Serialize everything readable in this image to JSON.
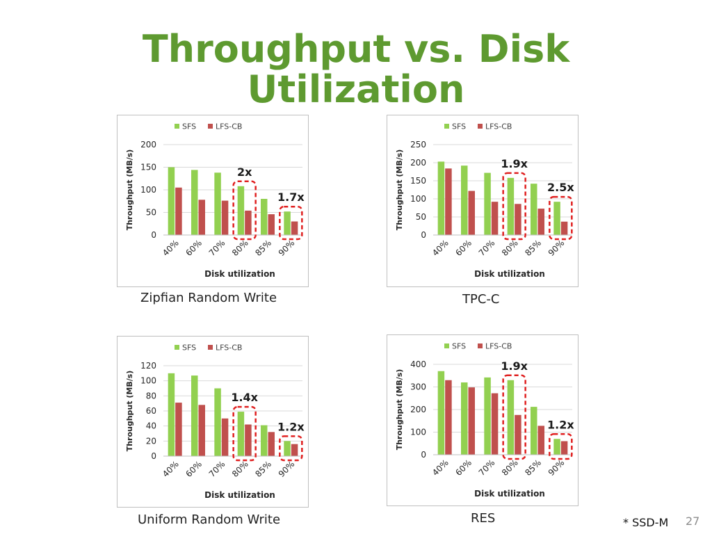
{
  "slide": {
    "title_line1": "Throughput vs. Disk",
    "title_line2": "Utilization",
    "footnote": "* SSD-M",
    "page_number": "27"
  },
  "colors": {
    "sfs": "#92d050",
    "lfs": "#c0504d",
    "callout": "#e02020",
    "title": "#5e9a30"
  },
  "chart_data": [
    {
      "type": "bar",
      "caption": "Zipfian Random Write",
      "categories": [
        "40%",
        "60%",
        "70%",
        "80%",
        "85%",
        "90%"
      ],
      "series": [
        {
          "name": "SFS",
          "values": [
            150,
            144,
            138,
            108,
            80,
            52
          ]
        },
        {
          "name": "LFS-CB",
          "values": [
            105,
            78,
            76,
            54,
            46,
            30
          ]
        }
      ],
      "xlabel": "Disk utilization",
      "ylabel": "Throughput (MB/s)",
      "ylim": [
        0,
        200
      ],
      "yticks": [
        "0",
        "50",
        "100",
        "150",
        "200"
      ],
      "legend": "top",
      "grid": true,
      "annotations": [
        {
          "text": "2x",
          "category": "80%"
        },
        {
          "text": "1.7x",
          "category": "90%"
        }
      ]
    },
    {
      "type": "bar",
      "caption": "TPC-C",
      "categories": [
        "40%",
        "60%",
        "70%",
        "80%",
        "85%",
        "90%"
      ],
      "series": [
        {
          "name": "SFS",
          "values": [
            203,
            192,
            172,
            158,
            142,
            92
          ]
        },
        {
          "name": "LFS-CB",
          "values": [
            184,
            122,
            92,
            86,
            73,
            37
          ]
        }
      ],
      "xlabel": "Disk utilization",
      "ylabel": "Throughput (MB/s)",
      "ylim": [
        0,
        250
      ],
      "yticks": [
        "0",
        "50",
        "100",
        "150",
        "200",
        "250"
      ],
      "legend": "top",
      "grid": true,
      "annotations": [
        {
          "text": "1.9x",
          "category": "80%"
        },
        {
          "text": "2.5x",
          "category": "90%"
        }
      ]
    },
    {
      "type": "bar",
      "caption": "Uniform Random Write",
      "categories": [
        "40%",
        "60%",
        "70%",
        "80%",
        "85%",
        "90%"
      ],
      "series": [
        {
          "name": "SFS",
          "values": [
            110,
            107,
            90,
            59,
            41,
            20
          ]
        },
        {
          "name": "LFS-CB",
          "values": [
            71,
            68,
            50,
            42,
            32,
            16
          ]
        }
      ],
      "xlabel": "Disk utilization",
      "ylabel": "Throughput (MB/s)",
      "ylim": [
        0,
        120
      ],
      "yticks": [
        "0",
        "20",
        "40",
        "60",
        "80",
        "100",
        "120"
      ],
      "legend": "top",
      "grid": true,
      "annotations": [
        {
          "text": "1.4x",
          "category": "80%"
        },
        {
          "text": "1.2x",
          "category": "90%"
        }
      ]
    },
    {
      "type": "bar",
      "caption": "RES",
      "categories": [
        "40%",
        "60%",
        "70%",
        "80%",
        "85%",
        "90%"
      ],
      "series": [
        {
          "name": "SFS",
          "values": [
            370,
            320,
            342,
            330,
            212,
            70
          ]
        },
        {
          "name": "LFS-CB",
          "values": [
            330,
            298,
            272,
            176,
            128,
            60
          ]
        }
      ],
      "xlabel": "Disk utilization",
      "ylabel": "Throughput (MB/s)",
      "ylim": [
        0,
        400
      ],
      "yticks": [
        "0",
        "100",
        "200",
        "300",
        "400"
      ],
      "legend": "top",
      "grid": true,
      "annotations": [
        {
          "text": "1.9x",
          "category": "80%"
        },
        {
          "text": "1.2x",
          "category": "90%"
        }
      ]
    }
  ]
}
